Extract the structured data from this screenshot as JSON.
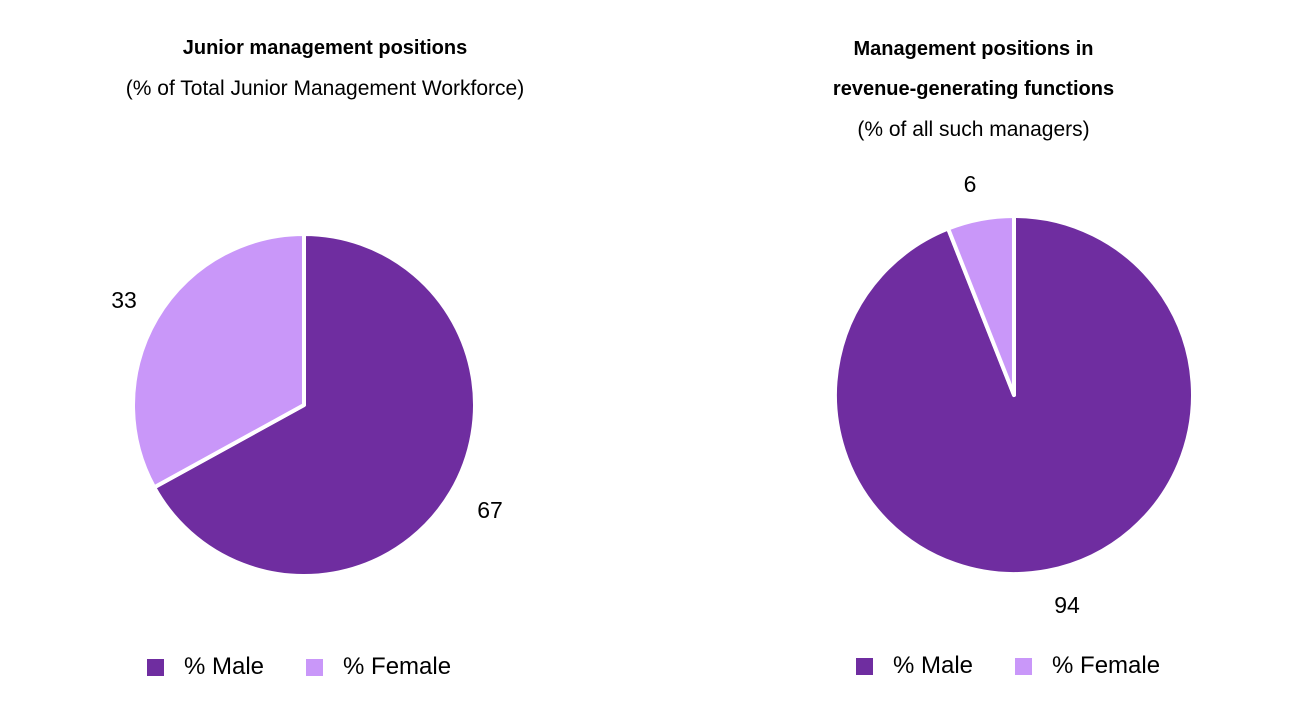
{
  "colors": {
    "male": "#6f2da0",
    "female": "#c997f9",
    "separator": "#ffffff"
  },
  "chart_data": [
    {
      "type": "pie",
      "title_lines": [
        "Junior management positions"
      ],
      "subtitle_lines": [
        "(% of Total Junior Management Workforce)"
      ],
      "slices": [
        {
          "label": "% Male",
          "value": 67,
          "color": "#6f2da0"
        },
        {
          "label": "% Female",
          "value": 33,
          "color": "#c997f9"
        }
      ],
      "start": "12 o'clock",
      "direction": "clockwise",
      "legend": [
        "% Male",
        "% Female"
      ],
      "legend_position": "bottom"
    },
    {
      "type": "pie",
      "title_lines": [
        "Management positions in",
        "revenue-generating functions"
      ],
      "subtitle_lines": [
        "(% of all such managers)"
      ],
      "slices": [
        {
          "label": "% Male",
          "value": 94,
          "color": "#6f2da0"
        },
        {
          "label": "% Female",
          "value": 6,
          "color": "#c997f9"
        }
      ],
      "start": "12 o'clock",
      "direction": "clockwise",
      "legend": [
        "% Male",
        "% Female"
      ],
      "legend_position": "bottom"
    }
  ]
}
